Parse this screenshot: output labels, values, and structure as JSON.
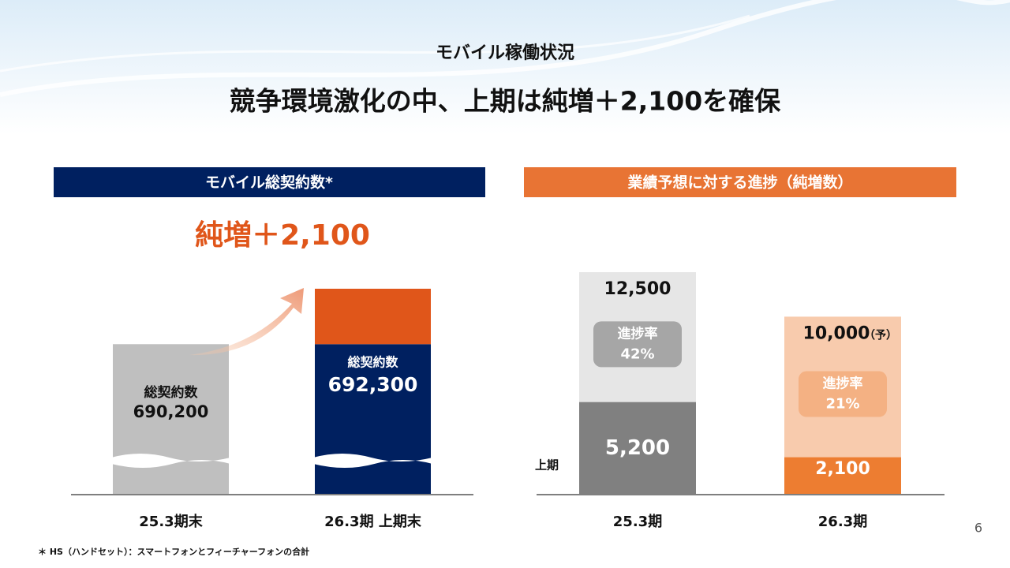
{
  "header": {
    "subtitle": "モバイル稼働状況",
    "title": "競争環境激化の中、上期は純増＋2,100を確保"
  },
  "chart_data": [
    {
      "type": "bar",
      "title": "モバイル総契約数*",
      "annotation": "純増＋2,100",
      "categories": [
        "25.3期末",
        "26.3期 上期末"
      ],
      "series_label": "総契約数",
      "values": [
        690200,
        692300
      ],
      "value_labels": [
        "690,200",
        "692,300"
      ],
      "colors": [
        "#bfbfbf",
        "#002060"
      ],
      "increase_color": "#e0561a",
      "title_color": "#002060",
      "annotation_color": "#e0561a",
      "ylim": [
        684500,
        692300
      ],
      "broken_axis": true
    },
    {
      "type": "overlay-bar",
      "title": "業績予想に対する進捗（純増数）",
      "categories": [
        "25.3期",
        "26.3期"
      ],
      "title_color": "#e87434",
      "series": [
        {
          "values": [
            12500,
            10000
          ],
          "value_labels": [
            "12,500",
            "10,000"
          ],
          "colors": [
            "#e6e6e6",
            "#f8cbad"
          ]
        },
        {
          "name": "上期",
          "values": [
            5200,
            2100
          ],
          "value_labels": [
            "5,200",
            "2,100"
          ],
          "colors": [
            "#808080",
            "#ed7d31"
          ]
        }
      ],
      "forecast_label": "（予）",
      "progress": {
        "label": "進捗率",
        "values": [
          42,
          21
        ],
        "value_labels": [
          "42%",
          "21%"
        ],
        "colors": [
          "#a6a6a6",
          "#f4b183"
        ]
      },
      "ylim": [
        0,
        12500
      ]
    }
  ],
  "footnote": "＊ HS（ハンドセット）：スマートフォンとフィーチャーフォンの合計",
  "page_number": "6"
}
